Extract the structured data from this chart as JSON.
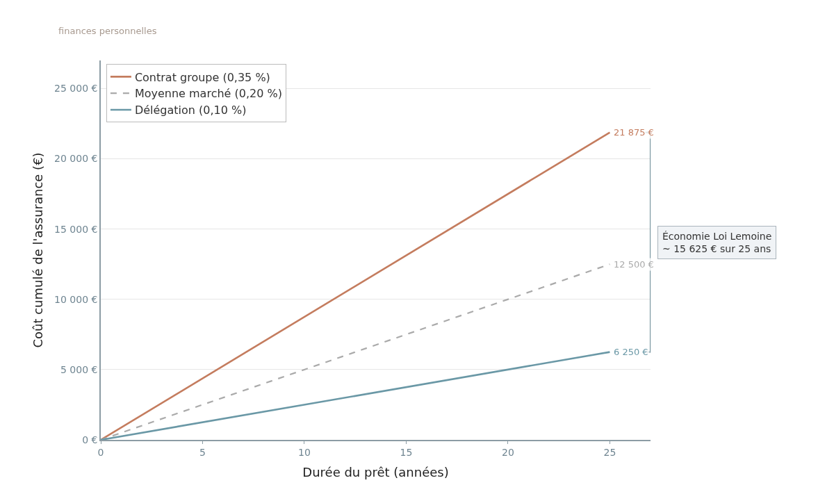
{
  "chart_data": {
    "type": "line",
    "subtitle": "finances personnelles",
    "xlabel": "Durée du prêt (années)",
    "ylabel": "Coût cumulé de l'assurance (€)",
    "x": [
      0,
      25
    ],
    "series": [
      {
        "name": "Contrat groupe (0,35 %)",
        "color": "#c47c5e",
        "values": [
          0,
          21875
        ],
        "value_labels": [
          null,
          "21 875 €"
        ],
        "line_style": "solid"
      },
      {
        "name": "Moyenne marché (0,20 %)",
        "color": "#aaaaaa",
        "values": [
          0,
          12500
        ],
        "value_labels": [
          null,
          "12 500 €"
        ],
        "line_style": "dashed"
      },
      {
        "name": "Délégation (0,10 %)",
        "color": "#6a98a6",
        "values": [
          0,
          6250
        ],
        "value_labels": [
          null,
          "6 250 €"
        ],
        "line_style": "solid"
      }
    ],
    "xlim": [
      0,
      27
    ],
    "xticks": [
      0,
      5,
      10,
      15,
      20,
      25
    ],
    "ylim": [
      0,
      27000
    ],
    "yticks": [
      {
        "value": 0,
        "label": "0 €"
      },
      {
        "value": 5000,
        "label": "5 000 €"
      },
      {
        "value": 10000,
        "label": "10 000 €"
      },
      {
        "value": 15000,
        "label": "15 000 €"
      },
      {
        "value": 20000,
        "label": "20 000 €"
      },
      {
        "value": 25000,
        "label": "25 000 €"
      }
    ],
    "grid": "y",
    "legend": "top left",
    "marker": "none",
    "annotations": [
      "Économie Loi Lemoine\n~ 15 625 € sur 25 ans"
    ]
  }
}
